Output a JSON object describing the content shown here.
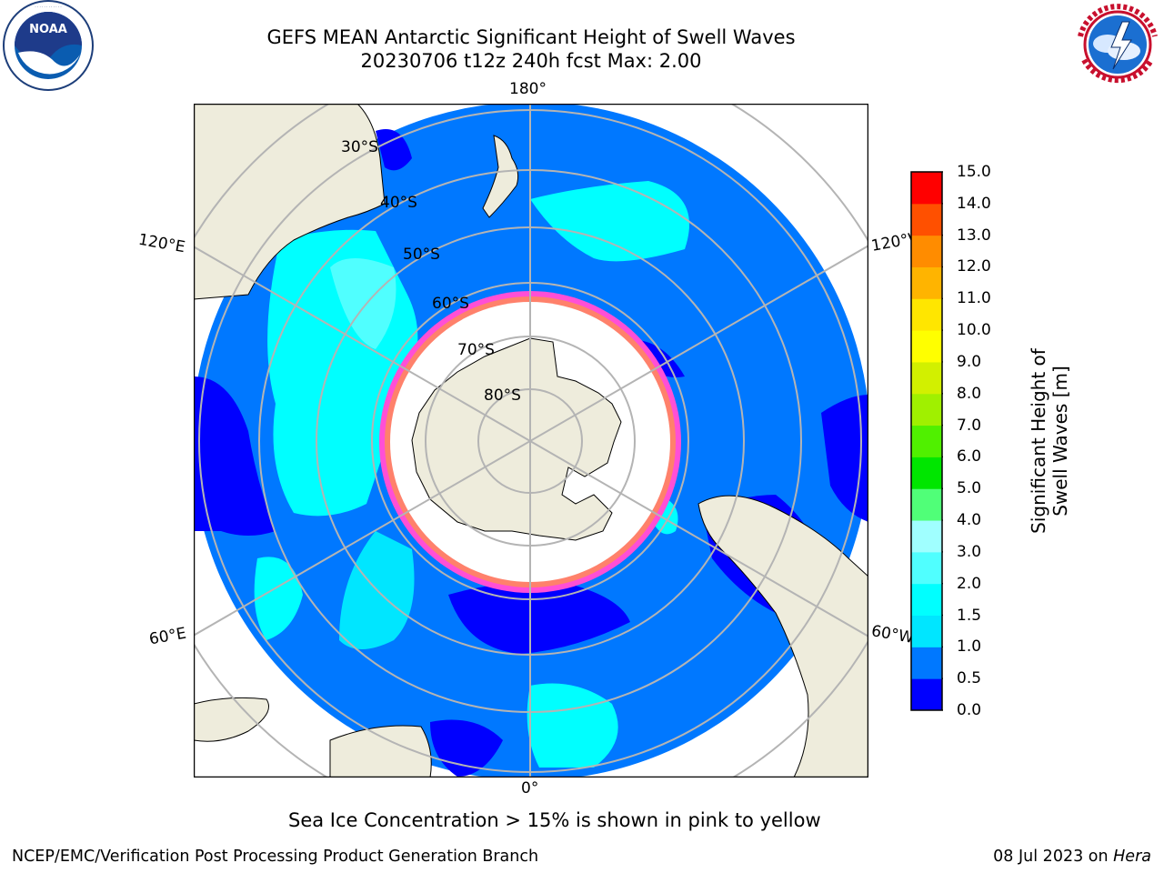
{
  "header": {
    "title_line1": "GEFS MEAN Antarctic Significant Height of Swell Waves",
    "title_line2": "20230706 t12z 240h fcst   Max: 2.00"
  },
  "logos": {
    "left": {
      "name": "noaa-logo",
      "text": "NOAA",
      "ring_text": "NATIONAL OCEANIC AND ATMOSPHERIC ADMINISTRATION · U.S. DEPARTMENT OF COMMERCE"
    },
    "right": {
      "name": "national-weather-service-logo",
      "ring_text": "NATIONAL WEATHER SERVICE"
    }
  },
  "map": {
    "projection": "south polar stereographic",
    "longitude_labels": {
      "top": "180°",
      "bottom": "0°",
      "upper_left": "120°E",
      "upper_right": "120°W",
      "lower_left": "60°E",
      "lower_right": "60°W"
    },
    "latitude_labels": [
      "30°S",
      "40°S",
      "50°S",
      "60°S",
      "70°S",
      "80°S"
    ],
    "colors": {
      "land": "#eeecdc",
      "ice": "#ffffff",
      "grid": "#b4b4b4",
      "coast": "#000000"
    }
  },
  "colorbar": {
    "label": "Significant Height of Swell Waves [m]",
    "ticks": [
      "0.0",
      "0.5",
      "1.0",
      "1.5",
      "2.0",
      "3.0",
      "4.0",
      "5.0",
      "6.0",
      "7.0",
      "8.0",
      "9.0",
      "10.0",
      "11.0",
      "12.0",
      "13.0",
      "14.0",
      "15.0"
    ],
    "colors": [
      "#0000ff",
      "#0078ff",
      "#00e6ff",
      "#00ffff",
      "#50ffff",
      "#a0ffff",
      "#50ff78",
      "#00e600",
      "#50f000",
      "#a0f000",
      "#d2f000",
      "#ffff00",
      "#ffe600",
      "#ffb400",
      "#ff8c00",
      "#ff5000",
      "#ff0000"
    ]
  },
  "footnote": "Sea Ice Concentration > 15% is shown in pink to yellow",
  "credits": {
    "left": "NCEP/EMC/Verification Post Processing Product Generation Branch",
    "right_prefix": "08 Jul 2023 on ",
    "right_host": "Hera"
  }
}
